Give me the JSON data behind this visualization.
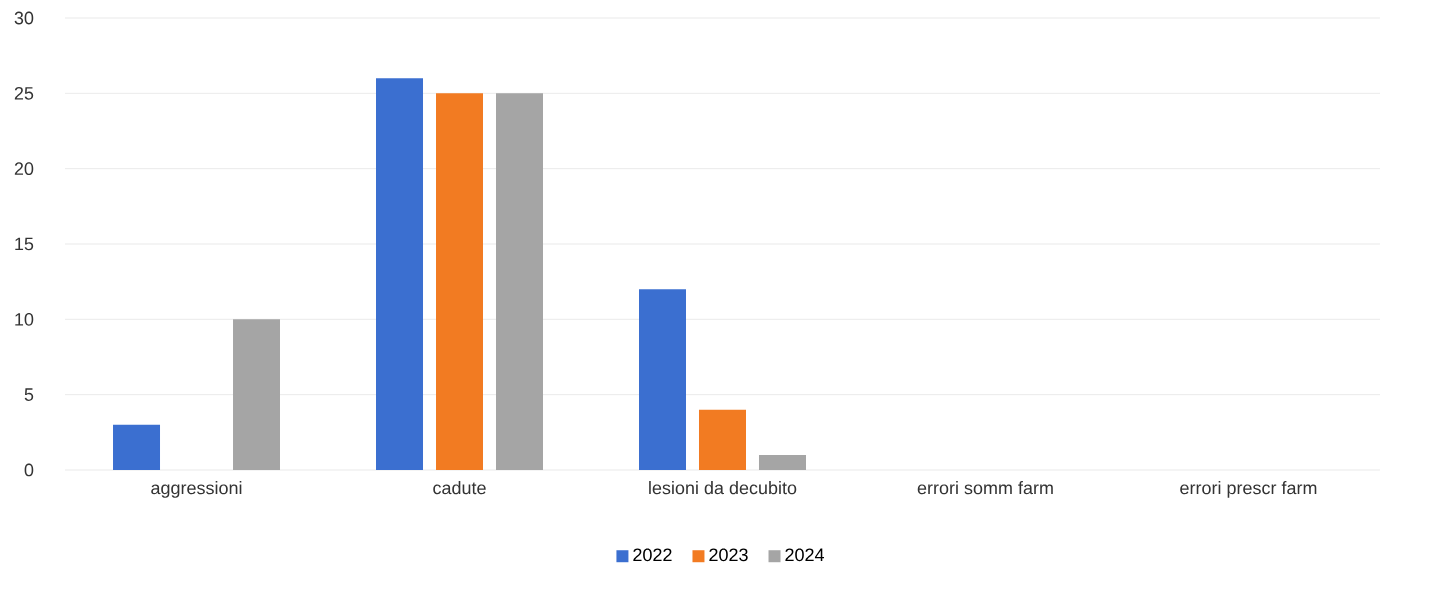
{
  "chart_data": {
    "type": "bar",
    "categories": [
      "aggressioni",
      "cadute",
      "lesioni da decubito",
      "errori somm farm",
      "errori prescr farm"
    ],
    "series": [
      {
        "name": "2022",
        "color": "#3b6fd0",
        "values": [
          3,
          26,
          12,
          0,
          0
        ]
      },
      {
        "name": "2023",
        "color": "#f27b22",
        "values": [
          0,
          25,
          4,
          0,
          0
        ]
      },
      {
        "name": "2024",
        "color": "#a5a5a5",
        "values": [
          10,
          25,
          1,
          0,
          0
        ]
      }
    ],
    "ylim": [
      0,
      30
    ],
    "yticks": [
      0,
      5,
      10,
      15,
      20,
      25,
      30
    ],
    "grid": "y",
    "legend": "bottom"
  }
}
